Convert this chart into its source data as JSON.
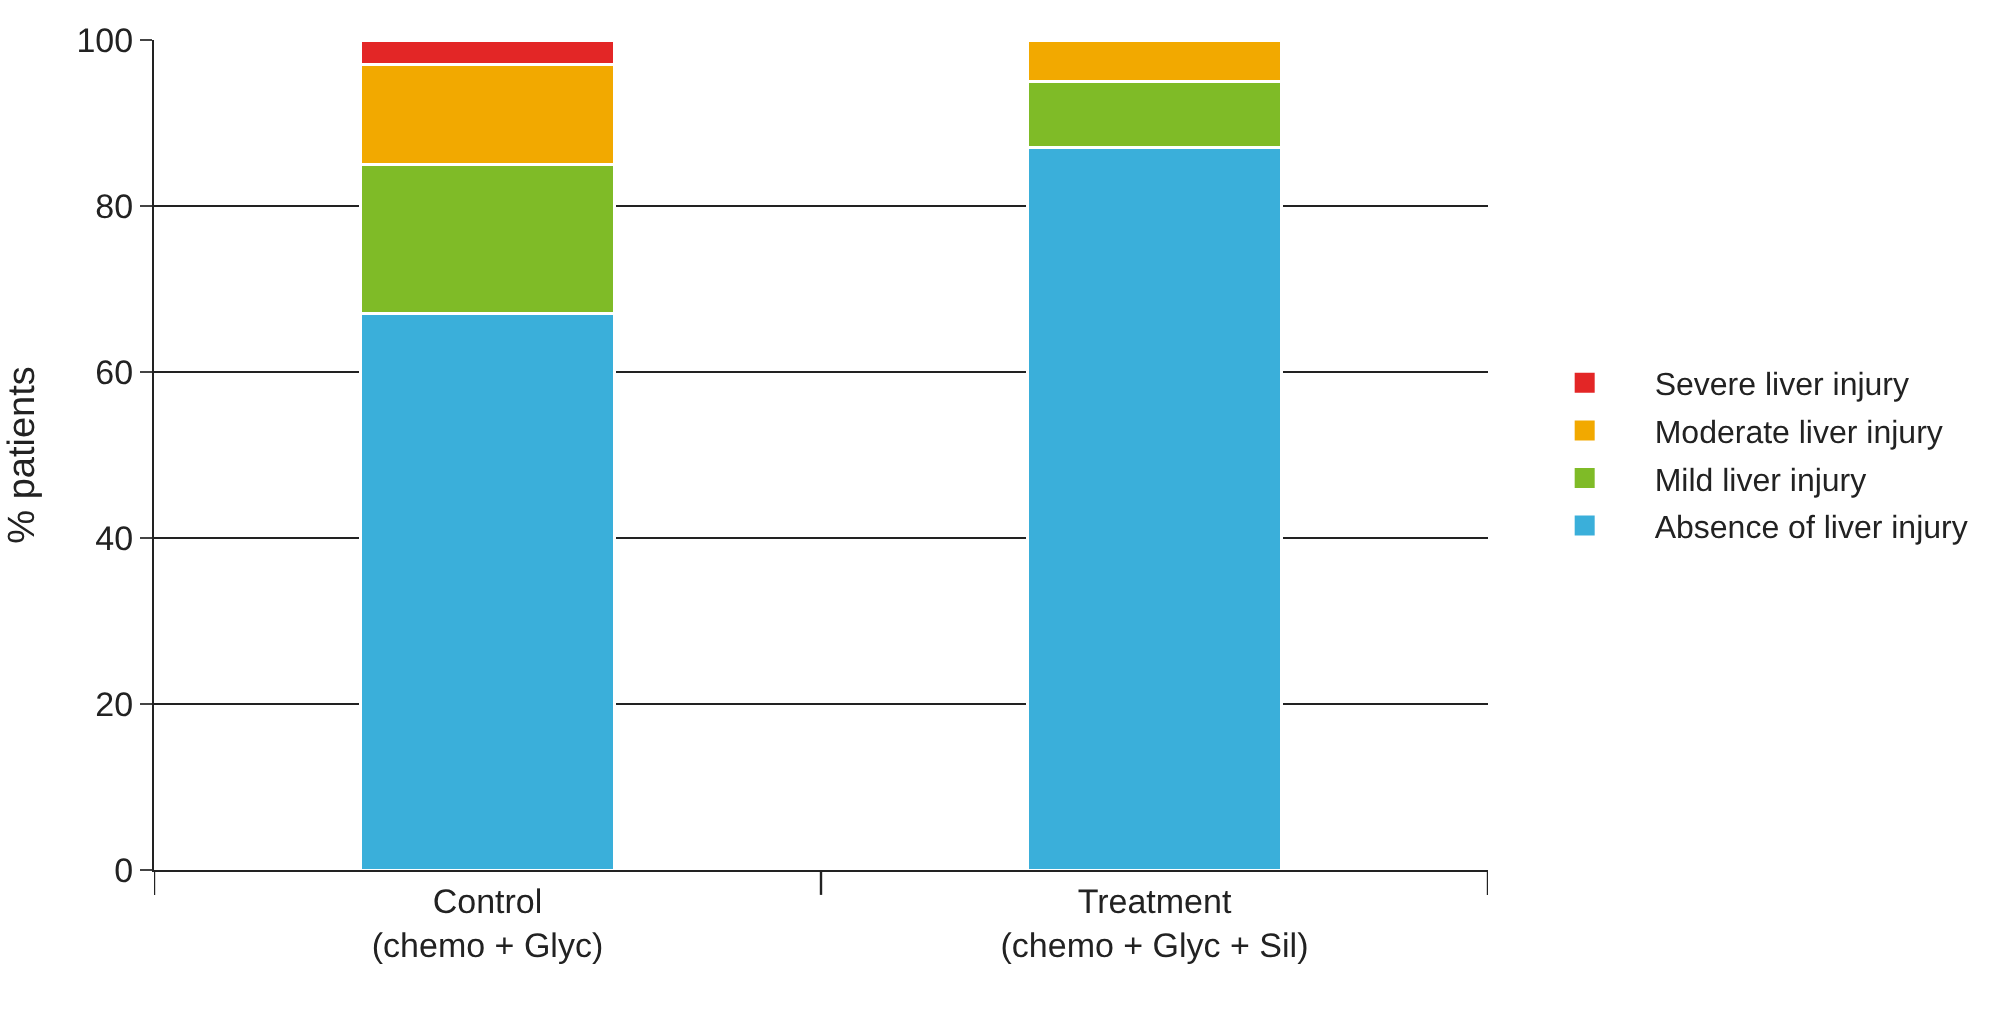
{
  "chart_data": {
    "type": "bar",
    "stacked": true,
    "ylabel": "% patients",
    "categories": [
      "Control\n(chemo + Glyc)",
      "Treatment\n(chemo + Glyc + Sil)"
    ],
    "series": [
      {
        "name": "Absence of liver injury",
        "color": "#3aafda",
        "values": [
          67,
          87
        ]
      },
      {
        "name": "Mild liver injury",
        "color": "#7fbb27",
        "values": [
          18,
          8
        ]
      },
      {
        "name": "Moderate liver injury",
        "color": "#f2a900",
        "values": [
          12,
          5
        ]
      },
      {
        "name": "Severe liver injury",
        "color": "#e32626",
        "values": [
          3,
          null
        ]
      }
    ],
    "ylim": [
      0,
      100
    ],
    "yticks": [
      0,
      20,
      40,
      60,
      80,
      100
    ],
    "grid": "y",
    "legend": "right"
  }
}
